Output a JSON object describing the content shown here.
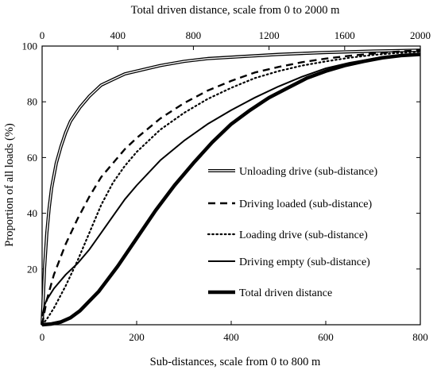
{
  "chart_data": {
    "type": "line",
    "title": "",
    "top_axis_label": "Total driven distance, scale from 0 to 2000 m",
    "xlabel": "Sub-distances, scale from 0 to 800 m",
    "ylabel": "Proportion of all loads (%)",
    "xlim": [
      0,
      800
    ],
    "x_top_lim": [
      0,
      2000
    ],
    "ylim": [
      0,
      100
    ],
    "x_ticks": [
      "0",
      "200",
      "400",
      "600",
      "800"
    ],
    "x_top_ticks": [
      "0",
      "400",
      "800",
      "1200",
      "1600",
      "2000"
    ],
    "y_ticks": [
      "20",
      "40",
      "60",
      "80",
      "100"
    ],
    "grid": false,
    "legend_position": "center-right",
    "series": [
      {
        "name": "Unloading drive (sub-distance)",
        "style": "double",
        "axis": "bottom",
        "x": [
          0,
          5,
          10,
          15,
          20,
          30,
          40,
          50,
          60,
          80,
          100,
          125,
          150,
          175,
          200,
          250,
          300,
          350,
          400,
          500,
          600,
          700,
          800
        ],
        "y": [
          0,
          20,
          33,
          42,
          49,
          58,
          64,
          69,
          73,
          78,
          82,
          86,
          88,
          90,
          91,
          93,
          94.5,
          95.5,
          96,
          97,
          97.7,
          98.2,
          98.5
        ]
      },
      {
        "name": "Driving loaded (sub-distance)",
        "style": "dashed",
        "axis": "bottom",
        "x": [
          0,
          10,
          25,
          50,
          75,
          100,
          125,
          150,
          175,
          200,
          250,
          300,
          350,
          400,
          450,
          500,
          550,
          600,
          650,
          700,
          750,
          800
        ],
        "y": [
          0,
          9,
          18,
          29,
          38,
          46,
          53,
          58,
          63,
          67,
          74,
          79.5,
          84,
          87.5,
          90.5,
          92.5,
          94.2,
          95.5,
          96.5,
          97.3,
          98,
          98.5
        ]
      },
      {
        "name": "Loading drive (sub-distance)",
        "style": "dotted",
        "axis": "bottom",
        "x": [
          0,
          10,
          25,
          50,
          75,
          100,
          125,
          150,
          175,
          200,
          250,
          300,
          350,
          400,
          450,
          500,
          550,
          600,
          650,
          700,
          750,
          800
        ],
        "y": [
          0,
          2,
          6,
          14,
          23,
          33,
          43,
          51,
          57,
          62,
          70,
          76,
          81,
          85,
          88.5,
          91,
          93,
          94.5,
          95.8,
          96.8,
          97.5,
          98
        ]
      },
      {
        "name": "Driving empty (sub-distance)",
        "style": "solid",
        "axis": "bottom",
        "x": [
          0,
          5,
          10,
          25,
          50,
          75,
          100,
          125,
          150,
          175,
          200,
          250,
          300,
          350,
          400,
          450,
          500,
          550,
          600,
          650,
          700,
          750,
          800
        ],
        "y": [
          3,
          7,
          9,
          13,
          18,
          22,
          27,
          33,
          39,
          45,
          50,
          59,
          66,
          72,
          77,
          81.5,
          85.5,
          89,
          92,
          94,
          95.5,
          96.5,
          97
        ]
      },
      {
        "name": "Total driven distance",
        "style": "thick",
        "axis": "top",
        "x": [
          0,
          50,
          100,
          150,
          200,
          300,
          400,
          500,
          600,
          700,
          800,
          900,
          1000,
          1100,
          1200,
          1300,
          1400,
          1500,
          1600,
          1700,
          1800,
          1900,
          2000
        ],
        "y": [
          0,
          0.3,
          1,
          2.5,
          5,
          12,
          21,
          31,
          41,
          50,
          58,
          65.5,
          72,
          77,
          81.5,
          85,
          88.5,
          91,
          93,
          94.5,
          95.8,
          96.6,
          97
        ]
      }
    ]
  }
}
